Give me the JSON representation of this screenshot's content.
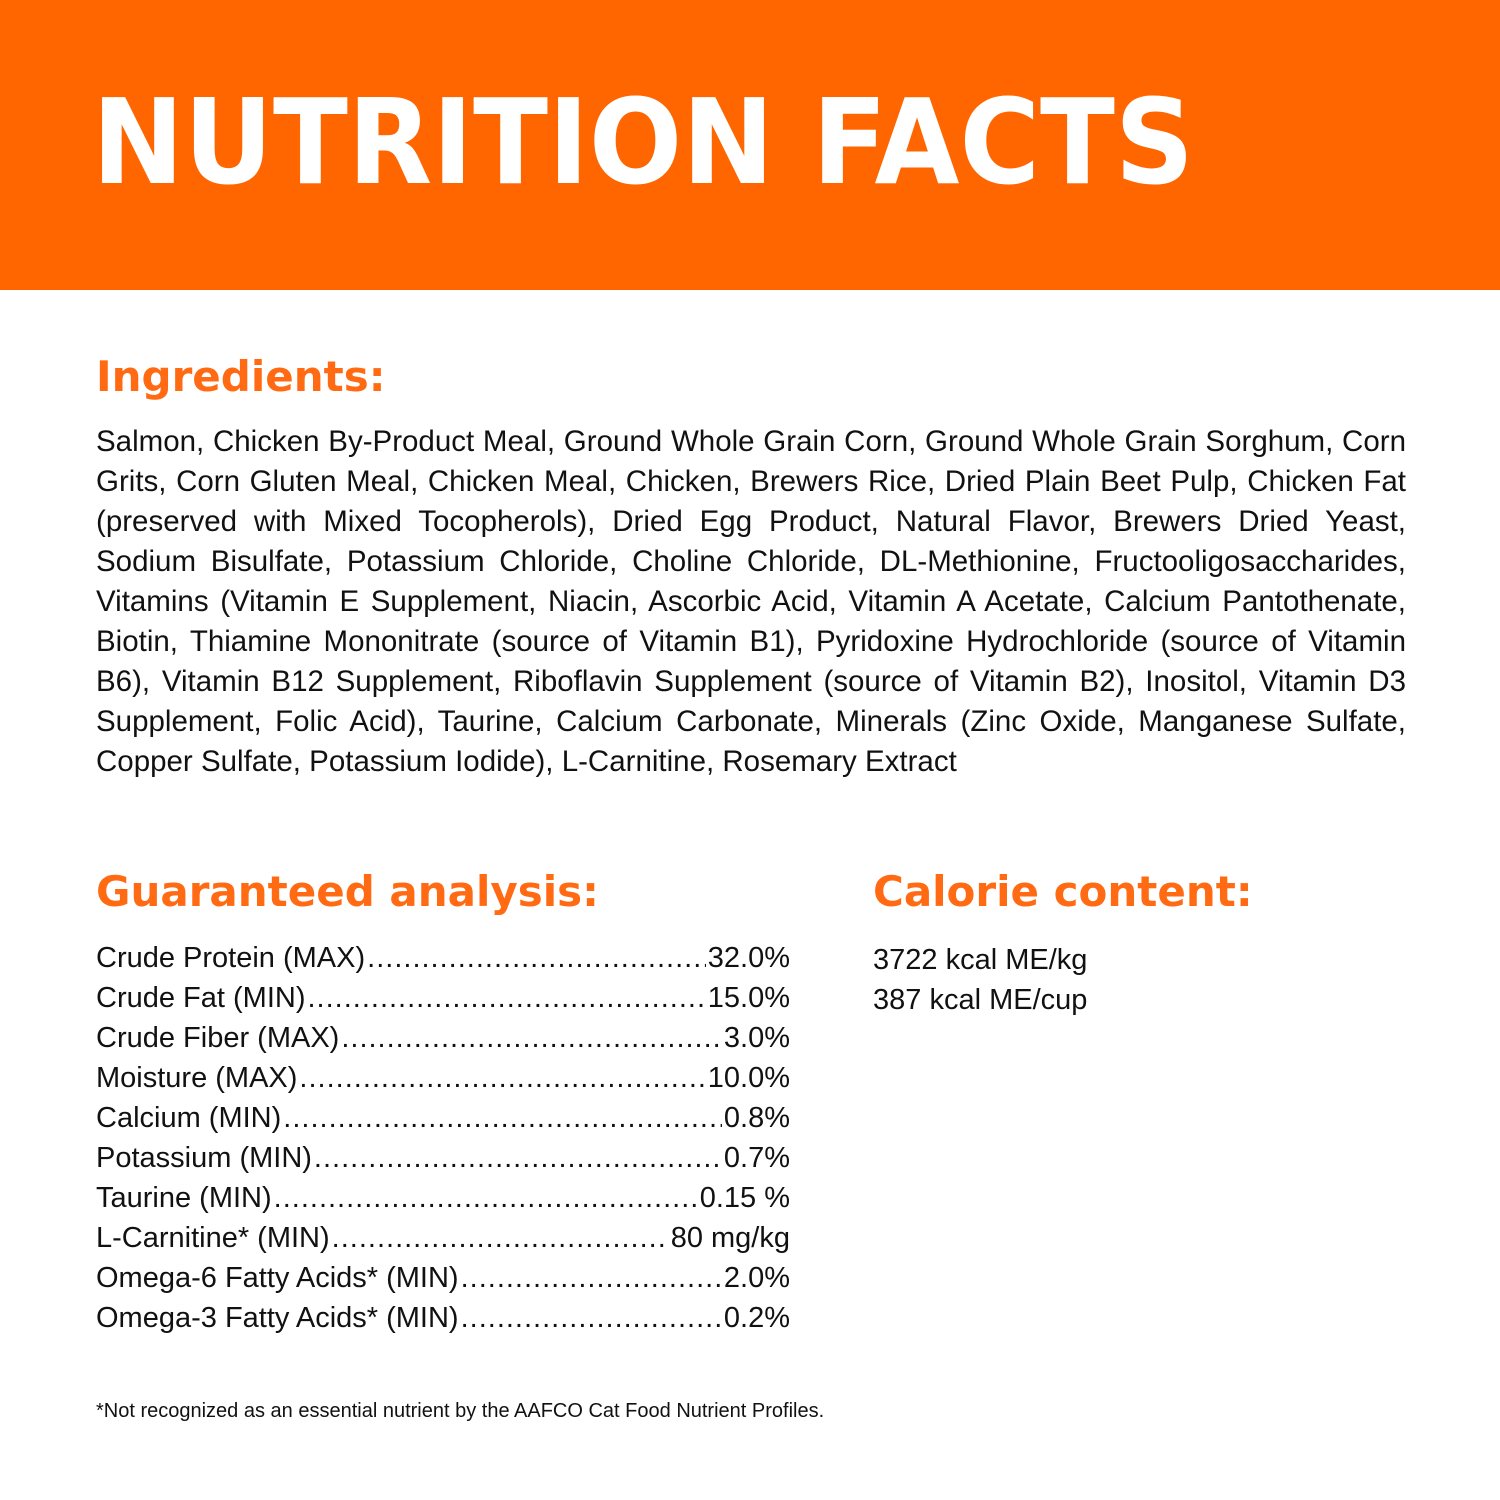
{
  "header": {
    "title": "NUTRITION FACTS",
    "background_color": "#ff6600"
  },
  "accent_color": "#ff6a13",
  "ingredients": {
    "heading": "Ingredients:",
    "text": "Salmon, Chicken By-Product Meal, Ground Whole Grain Corn, Ground Whole Grain Sorghum, Corn Grits, Corn Gluten Meal, Chicken Meal, Chicken, Brewers Rice, Dried Plain Beet Pulp, Chicken Fat (preserved with Mixed Tocopherols), Dried Egg Product, Natural Flavor, Brewers Dried Yeast, Sodium Bisulfate, Potassium Chloride, Choline Chloride, DL-Methionine, Fructooligosaccharides, Vitamins (Vitamin E Supplement, Niacin, Ascorbic Acid, Vitamin A Acetate, Calcium Pantothenate, Biotin, Thiamine Mononitrate (source of Vitamin B1), Pyridoxine Hydrochloride (source of Vitamin B6), Vitamin B12 Supplement, Riboflavin Supplement (source of Vitamin B2), Inositol, Vitamin D3 Supplement, Folic Acid), Taurine, Calcium Carbonate, Minerals (Zinc Oxide, Manganese Sulfate, Copper Sulfate, Potassium Iodide), L-Carnitine, Rosemary Extract"
  },
  "guaranteed_analysis": {
    "heading": "Guaranteed analysis:",
    "rows": [
      {
        "label": "Crude Protein (MAX)",
        "value": "32.0%"
      },
      {
        "label": "Crude Fat (MIN)",
        "value": "15.0%"
      },
      {
        "label": "Crude Fiber (MAX)",
        "value": "3.0%"
      },
      {
        "label": "Moisture (MAX)",
        "value": "10.0%"
      },
      {
        "label": "Calcium (MIN)",
        "value": "0.8%"
      },
      {
        "label": "Potassium (MIN)",
        "value": "0.7%"
      },
      {
        "label": "Taurine (MIN)",
        "value": "0.15 %"
      },
      {
        "label": "L-Carnitine* (MIN)",
        "value": "80 mg/kg"
      },
      {
        "label": "Omega-6 Fatty Acids* (MIN)",
        "value": "2.0%"
      },
      {
        "label": "Omega-3 Fatty Acids* (MIN)",
        "value": "0.2%"
      }
    ]
  },
  "calorie_content": {
    "heading": "Calorie content:",
    "rows": [
      "3722 kcal ME/kg",
      "387 kcal ME/cup"
    ]
  },
  "footnote": "*Not recognized as an essential nutrient by the AAFCO Cat Food Nutrient Profiles."
}
